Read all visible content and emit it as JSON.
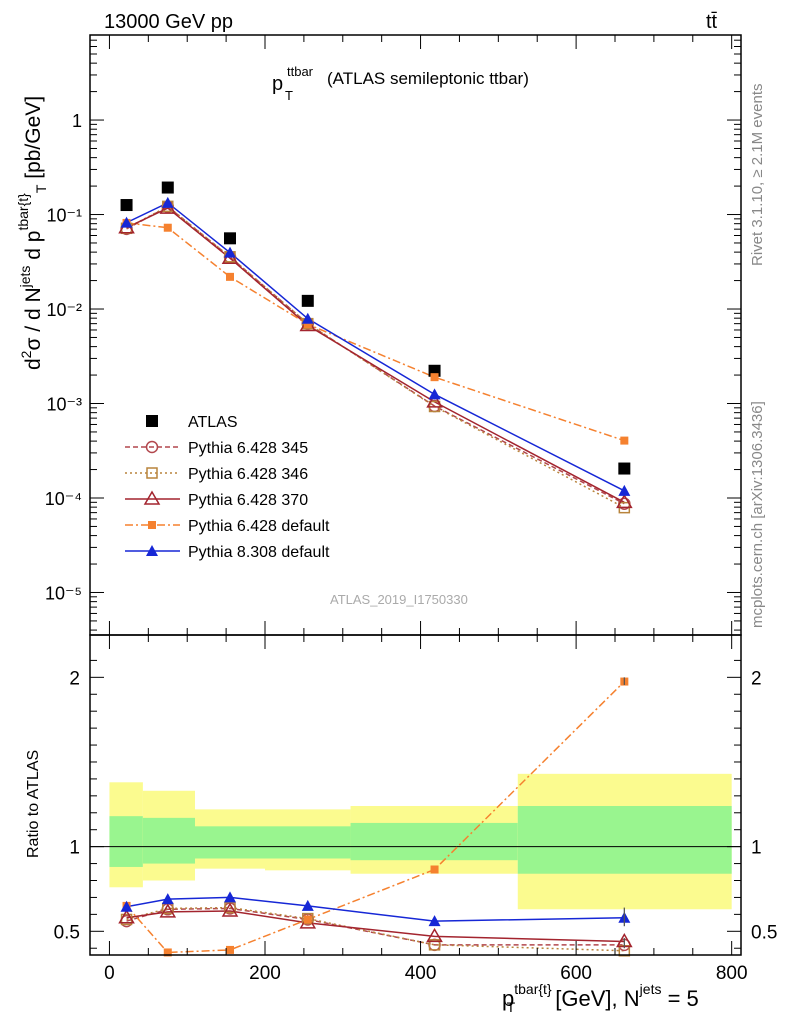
{
  "header": {
    "left": "13000 GeV pp",
    "right": "tt̄"
  },
  "side_text": {
    "rivet": "Rivet 3.1.10, ≥ 2.1M events",
    "mcplots": "mcplots.cern.ch [arXiv:1306.3436]"
  },
  "chart_data": {
    "type": "line",
    "title_main": "p",
    "title_sup": "ttbar",
    "title_sub": "T",
    "title_rest": "(ATLAS semileptonic ttbar)",
    "watermark": "ATLAS_2019_I1750330",
    "ylabel_top": "d²σ / d Nʲᵉᵗˢ d pᵗᵇᵃʳ⁽ᵗ⁾ₜ [pb/GeV]",
    "ylabel_bottom": "Ratio to ATLAS",
    "xlabel": "p^{tbar{t}}_T [GeV], N^{jets} = 5",
    "xlabel_parts": {
      "p": "p",
      "sup": "tbar{t}",
      "sub": "T",
      "rest": "[GeV], N",
      "sup2": "jets",
      "eq": " = 5"
    },
    "x_ticks": [
      0,
      200,
      400,
      600,
      800
    ],
    "x_tick_labels": [
      "0",
      "200",
      "400",
      "600",
      "800"
    ],
    "y_ticks_top_labels": [
      "1",
      "10⁻¹",
      "10⁻²",
      "10⁻³",
      "10⁻⁴",
      "10⁻⁵"
    ],
    "y_ticks_ratio_labels": [
      "2",
      "1",
      "0.5"
    ],
    "xlim": [
      -25,
      812
    ],
    "ylim_top_log10": [
      -5.45,
      0.9
    ],
    "ratio_ylim": [
      0.36,
      2.25
    ],
    "x": [
      22,
      75,
      155,
      255,
      418,
      662
    ],
    "bin_edges": [
      0,
      43,
      110,
      200,
      310,
      525,
      800
    ],
    "atlas": [
      0.126,
      0.193,
      0.056,
      0.0122,
      0.00222,
      0.000205
    ],
    "band_inner": [
      [
        0.88,
        1.18
      ],
      [
        0.9,
        1.17
      ],
      [
        0.93,
        1.12
      ],
      [
        0.93,
        1.12
      ],
      [
        0.92,
        1.14
      ],
      [
        0.84,
        1.24
      ]
    ],
    "band_outer": [
      [
        0.76,
        1.38
      ],
      [
        0.8,
        1.33
      ],
      [
        0.87,
        1.22
      ],
      [
        0.86,
        1.22
      ],
      [
        0.84,
        1.24
      ],
      [
        0.63,
        1.43
      ]
    ],
    "series": [
      {
        "name": "ATLAS",
        "color": "#000000",
        "marker": "square-filled",
        "dash": "none",
        "values": [
          0.126,
          0.193,
          0.056,
          0.0122,
          0.00222,
          0.000205
        ]
      },
      {
        "name": "Pythia 6.428 345",
        "color": "#b2474d",
        "marker": "circle-open",
        "dash": "5,3",
        "values": [
          0.0705,
          0.121,
          0.0355,
          0.007,
          0.00094,
          8.7e-05
        ],
        "ratio": [
          0.56,
          0.63,
          0.635,
          0.57,
          0.42,
          0.42
        ]
      },
      {
        "name": "Pythia 6.428 346",
        "color": "#b8843c",
        "marker": "square-open",
        "dash": "2,3",
        "values": [
          0.0715,
          0.122,
          0.0357,
          0.007,
          0.00093,
          7.9e-05
        ],
        "ratio": [
          0.57,
          0.635,
          0.64,
          0.575,
          0.42,
          0.385
        ]
      },
      {
        "name": "Pythia 6.428 370",
        "color": "#a3242e",
        "marker": "triangle-open",
        "dash": "none",
        "values": [
          0.0725,
          0.117,
          0.0345,
          0.0067,
          0.00104,
          9e-05
        ],
        "ratio": [
          0.58,
          0.615,
          0.62,
          0.55,
          0.47,
          0.44
        ]
      },
      {
        "name": "Pythia 6.428 default",
        "color": "#f5812f",
        "marker": "square-small-filled",
        "dash": "8,3,2,3",
        "values": [
          0.0815,
          0.0725,
          0.0219,
          0.0069,
          0.0019,
          0.000405
        ],
        "ratio": [
          0.65,
          0.375,
          0.39,
          0.57,
          0.865,
          1.975
        ]
      },
      {
        "name": "Pythia 8.308 default",
        "color": "#1627d6",
        "marker": "triangle-filled",
        "dash": "none",
        "values": [
          0.082,
          0.133,
          0.0395,
          0.0079,
          0.00125,
          0.000119
        ],
        "ratio": [
          0.645,
          0.69,
          0.7,
          0.65,
          0.56,
          0.58
        ]
      }
    ]
  }
}
